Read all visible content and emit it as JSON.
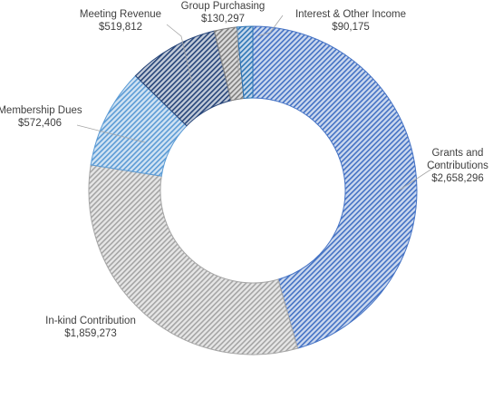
{
  "chart_data": {
    "type": "pie",
    "variant": "doughnut",
    "title": "",
    "categories": [
      "Grants and Contributions",
      "In-kind Contribution",
      "Membership Dues",
      "Meeting Revenue",
      "Group Purchasing",
      "Interest & Other Income"
    ],
    "values": [
      2658296,
      1859273,
      572406,
      519812,
      130297,
      90175
    ],
    "value_labels": [
      "$2,658,296",
      "$1,859,273",
      "$572,406",
      "$519,812",
      "$130,297",
      "$90,175"
    ],
    "label_lines": [
      [
        "Grants and",
        "Contributions"
      ],
      [
        "In-kind Contribution"
      ],
      [
        "Membership Dues"
      ],
      [
        "Meeting Revenue"
      ],
      [
        "Group Purchasing"
      ],
      [
        "Interest & Other Income"
      ]
    ],
    "colors": [
      "#4472c4",
      "#a5a5a5",
      "#5b9bd5",
      "#264478",
      "#7f7f7f",
      "#2e75b6"
    ],
    "fill_pattern": "diagonal-hatch",
    "legend": "none",
    "data_labels": "outside-with-leader-lines"
  }
}
